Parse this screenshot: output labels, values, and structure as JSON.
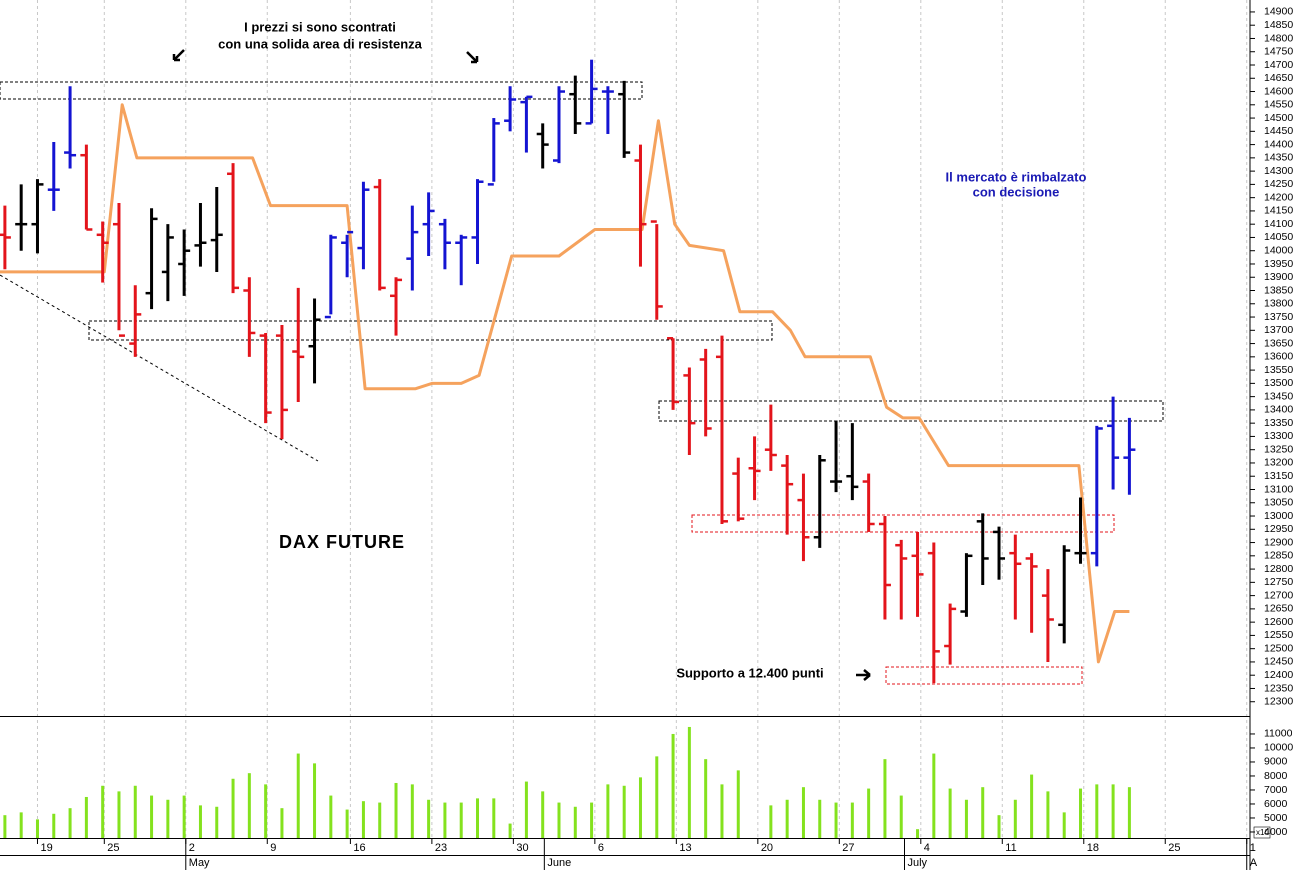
{
  "chart_data": [
    {
      "type": "ohlc",
      "title": "DAX FUTURE",
      "annotations": [
        "I prezzi si sono scontrati",
        "con una solida area di resistenza",
        "Il mercato è rimbalzato",
        "con decisione",
        "Supporto a 12.400 punti"
      ],
      "x": [
        0,
        1,
        2,
        3,
        4,
        5,
        6,
        7,
        8,
        9,
        10,
        11,
        12,
        13,
        14,
        15,
        16,
        17,
        18,
        19,
        20,
        21,
        22,
        23,
        24,
        25,
        26,
        27,
        28,
        29,
        30,
        31,
        32,
        33,
        34,
        35,
        36,
        37,
        38,
        39,
        40,
        41,
        42,
        43,
        44,
        45,
        46,
        47,
        48,
        49,
        50,
        51,
        52,
        53,
        54,
        55,
        56,
        57,
        58,
        59,
        60,
        61,
        62,
        63,
        64,
        65,
        66,
        67,
        68,
        69
      ],
      "open": [
        14060,
        14100,
        14100,
        14230,
        14370,
        14360,
        14060,
        14100,
        13650,
        13840,
        13920,
        13950,
        14020,
        14040,
        14290,
        13850,
        13680,
        13680,
        13620,
        13640,
        13750,
        14030,
        14010,
        14240,
        13830,
        13970,
        14100,
        14100,
        14030,
        14050,
        14250,
        14490,
        14560,
        14440,
        14340,
        14590,
        14480,
        14600,
        14590,
        14340,
        14110,
        13670,
        13530,
        13590,
        13600,
        13160,
        13180,
        13250,
        13190,
        13060,
        12920,
        13130,
        13150,
        13130,
        12970,
        12890,
        12850,
        12860,
        12510,
        12640,
        12980,
        12940,
        12860,
        12840,
        12700,
        12590,
        12860,
        12860,
        13340,
        13220
      ],
      "high": [
        14170,
        14250,
        14270,
        14410,
        14620,
        14400,
        14110,
        14180,
        13870,
        14160,
        14100,
        14080,
        14180,
        14240,
        14330,
        13900,
        13690,
        13720,
        13860,
        13820,
        14060,
        14060,
        14260,
        14270,
        13900,
        14170,
        14220,
        14120,
        14060,
        14270,
        14500,
        14620,
        14580,
        14480,
        14620,
        14660,
        14720,
        14620,
        14640,
        14400,
        14100,
        13670,
        13560,
        13630,
        13680,
        13220,
        13300,
        13420,
        13230,
        13160,
        13230,
        13360,
        13350,
        13160,
        13000,
        12910,
        12940,
        12900,
        12670,
        12860,
        13010,
        12960,
        12930,
        12860,
        12800,
        12890,
        13070,
        13340,
        13450,
        13370
      ],
      "low": [
        13930,
        14000,
        13990,
        14150,
        14310,
        14080,
        13880,
        13700,
        13600,
        13780,
        13810,
        13830,
        13940,
        13920,
        13840,
        13600,
        13350,
        13290,
        13430,
        13500,
        13760,
        13900,
        13930,
        13850,
        13680,
        13850,
        13980,
        13930,
        13870,
        13950,
        14260,
        14450,
        14370,
        14310,
        14330,
        14440,
        14480,
        14440,
        14350,
        13940,
        13740,
        13400,
        13230,
        13300,
        12970,
        12980,
        13060,
        13170,
        12930,
        12830,
        12880,
        13090,
        13060,
        12940,
        12610,
        12610,
        12620,
        12370,
        12440,
        12620,
        12740,
        12760,
        12610,
        12560,
        12450,
        12520,
        12820,
        12810,
        13100,
        13080
      ],
      "close": [
        14050,
        14100,
        14250,
        14230,
        14360,
        14080,
        14030,
        13680,
        13760,
        14120,
        14050,
        14000,
        14030,
        14060,
        13860,
        13690,
        13390,
        13400,
        13600,
        13740,
        14050,
        14070,
        14230,
        13860,
        13890,
        14070,
        14150,
        14030,
        14050,
        14260,
        14480,
        14570,
        14580,
        14400,
        14600,
        14480,
        14610,
        14600,
        14370,
        14100,
        13790,
        13430,
        13350,
        13330,
        12980,
        12990,
        13170,
        13230,
        13120,
        12920,
        13210,
        13130,
        13110,
        12970,
        12740,
        12840,
        12780,
        12490,
        12650,
        12850,
        12840,
        12840,
        12820,
        12810,
        12610,
        12870,
        12860,
        13330,
        13220,
        13250
      ],
      "bar_colors": [
        "#e3141b",
        "#000000",
        "#000000",
        "#1414d2",
        "#1414d2",
        "#e3141b",
        "#e3141b",
        "#e3141b",
        "#e3141b",
        "#000000",
        "#000000",
        "#000000",
        "#000000",
        "#000000",
        "#e3141b",
        "#e3141b",
        "#e3141b",
        "#e3141b",
        "#e3141b",
        "#000000",
        "#1414d2",
        "#1414d2",
        "#1414d2",
        "#e3141b",
        "#e3141b",
        "#1414d2",
        "#1414d2",
        "#1414d2",
        "#1414d2",
        "#1414d2",
        "#1414d2",
        "#1414d2",
        "#1414d2",
        "#000000",
        "#1414d2",
        "#000000",
        "#1414d2",
        "#1414d2",
        "#000000",
        "#e3141b",
        "#e3141b",
        "#e3141b",
        "#e3141b",
        "#e3141b",
        "#e3141b",
        "#e3141b",
        "#e3141b",
        "#e3141b",
        "#e3141b",
        "#e3141b",
        "#000000",
        "#000000",
        "#000000",
        "#e3141b",
        "#e3141b",
        "#e3141b",
        "#e3141b",
        "#e3141b",
        "#e3141b",
        "#000000",
        "#000000",
        "#000000",
        "#e3141b",
        "#e3141b",
        "#e3141b",
        "#000000",
        "#000000",
        "#1414d2",
        "#1414d2",
        "#1414d2"
      ],
      "line": {
        "color": "#f5a25d",
        "x": [
          -0.3,
          6.1,
          7.2,
          8.1,
          15.2,
          16.3,
          21.0,
          22.1,
          25.2,
          26.2,
          28.0,
          29.1,
          31.1,
          34.0,
          36.2,
          39.1,
          40.1,
          41.1,
          42.0,
          44.1,
          45.1,
          47.1,
          48.2,
          49.1,
          53.1,
          54.1,
          55.1,
          56.1,
          57.9,
          65.9,
          67.1,
          68.1,
          69.0
        ],
        "values": [
          13920,
          13920,
          14550,
          14350,
          14350,
          14170,
          14170,
          13480,
          13480,
          13500,
          13500,
          13530,
          13980,
          13980,
          14080,
          14080,
          14490,
          14100,
          14020,
          14000,
          13770,
          13770,
          13700,
          13600,
          13600,
          13410,
          13370,
          13370,
          13190,
          13190,
          12450,
          12640,
          12640
        ]
      },
      "xlim": [
        -0.3,
        76.4
      ],
      "ylim": [
        12250,
        14945
      ],
      "yticks": [
        12300,
        12350,
        12400,
        12450,
        12500,
        12550,
        12600,
        12650,
        12700,
        12750,
        12800,
        12850,
        12900,
        12950,
        13000,
        13050,
        13100,
        13150,
        13200,
        13250,
        13300,
        13350,
        13400,
        13450,
        13500,
        13550,
        13600,
        13650,
        13700,
        13750,
        13800,
        13850,
        13900,
        13950,
        14000,
        14050,
        14100,
        14150,
        14200,
        14250,
        14300,
        14350,
        14400,
        14450,
        14500,
        14550,
        14600,
        14650,
        14700,
        14750,
        14800,
        14850,
        14900
      ]
    },
    {
      "type": "bar",
      "color": "#84e21e",
      "y_multiplier_label": "x10",
      "x": [
        0,
        1,
        2,
        3,
        4,
        5,
        6,
        7,
        8,
        9,
        10,
        11,
        12,
        13,
        14,
        15,
        16,
        17,
        18,
        19,
        20,
        21,
        22,
        23,
        24,
        25,
        26,
        27,
        28,
        29,
        30,
        31,
        32,
        33,
        34,
        35,
        36,
        37,
        38,
        39,
        40,
        41,
        42,
        43,
        44,
        45,
        46,
        47,
        48,
        49,
        50,
        51,
        52,
        53,
        54,
        55,
        56,
        57,
        58,
        59,
        60,
        61,
        62,
        63,
        64,
        65,
        66,
        67,
        68,
        69
      ],
      "values": [
        5200,
        5400,
        4900,
        5300,
        5700,
        6500,
        7300,
        6900,
        7300,
        6600,
        6300,
        6600,
        5900,
        5800,
        7800,
        8200,
        7400,
        5700,
        9600,
        8900,
        6600,
        5600,
        6200,
        6100,
        7500,
        7400,
        6300,
        6100,
        6100,
        6400,
        6400,
        4600,
        7600,
        6900,
        6100,
        5800,
        6100,
        7400,
        7300,
        7900,
        9400,
        11000,
        11500,
        9200,
        7400,
        8400,
        null,
        5900,
        6300,
        7200,
        6300,
        6100,
        6100,
        7100,
        9200,
        6600,
        4200,
        9600,
        7100,
        6300,
        7200,
        5200,
        6300,
        8100,
        6900,
        5400,
        7100,
        7400,
        7400,
        7200
      ],
      "xlim": [
        -0.3,
        76.4
      ],
      "ylim": [
        3570,
        12140
      ],
      "yticks": [
        4000,
        5000,
        6000,
        7000,
        8000,
        9000,
        10000,
        11000
      ],
      "xticks": [
        {
          "value": 2.0,
          "label": "19"
        },
        {
          "value": 6.1,
          "label": "25"
        },
        {
          "value": 11.1,
          "label": "2"
        },
        {
          "value": 16.1,
          "label": "9"
        },
        {
          "value": 21.2,
          "label": "16"
        },
        {
          "value": 26.2,
          "label": "23"
        },
        {
          "value": 31.2,
          "label": "30"
        },
        {
          "value": 36.2,
          "label": "6"
        },
        {
          "value": 41.2,
          "label": "13"
        },
        {
          "value": 46.2,
          "label": "20"
        },
        {
          "value": 51.2,
          "label": "27"
        },
        {
          "value": 56.2,
          "label": "4"
        },
        {
          "value": 61.2,
          "label": "11"
        },
        {
          "value": 66.2,
          "label": "18"
        },
        {
          "value": 71.2,
          "label": "25"
        },
        {
          "value": 76.2,
          "label": "1"
        }
      ],
      "month_ticks": [
        {
          "value": 11.1,
          "label": "May"
        },
        {
          "value": 33.1,
          "label": "June"
        },
        {
          "value": 55.2,
          "label": "July"
        },
        {
          "value": 76.2,
          "label": "A"
        }
      ],
      "grid": true
    }
  ]
}
